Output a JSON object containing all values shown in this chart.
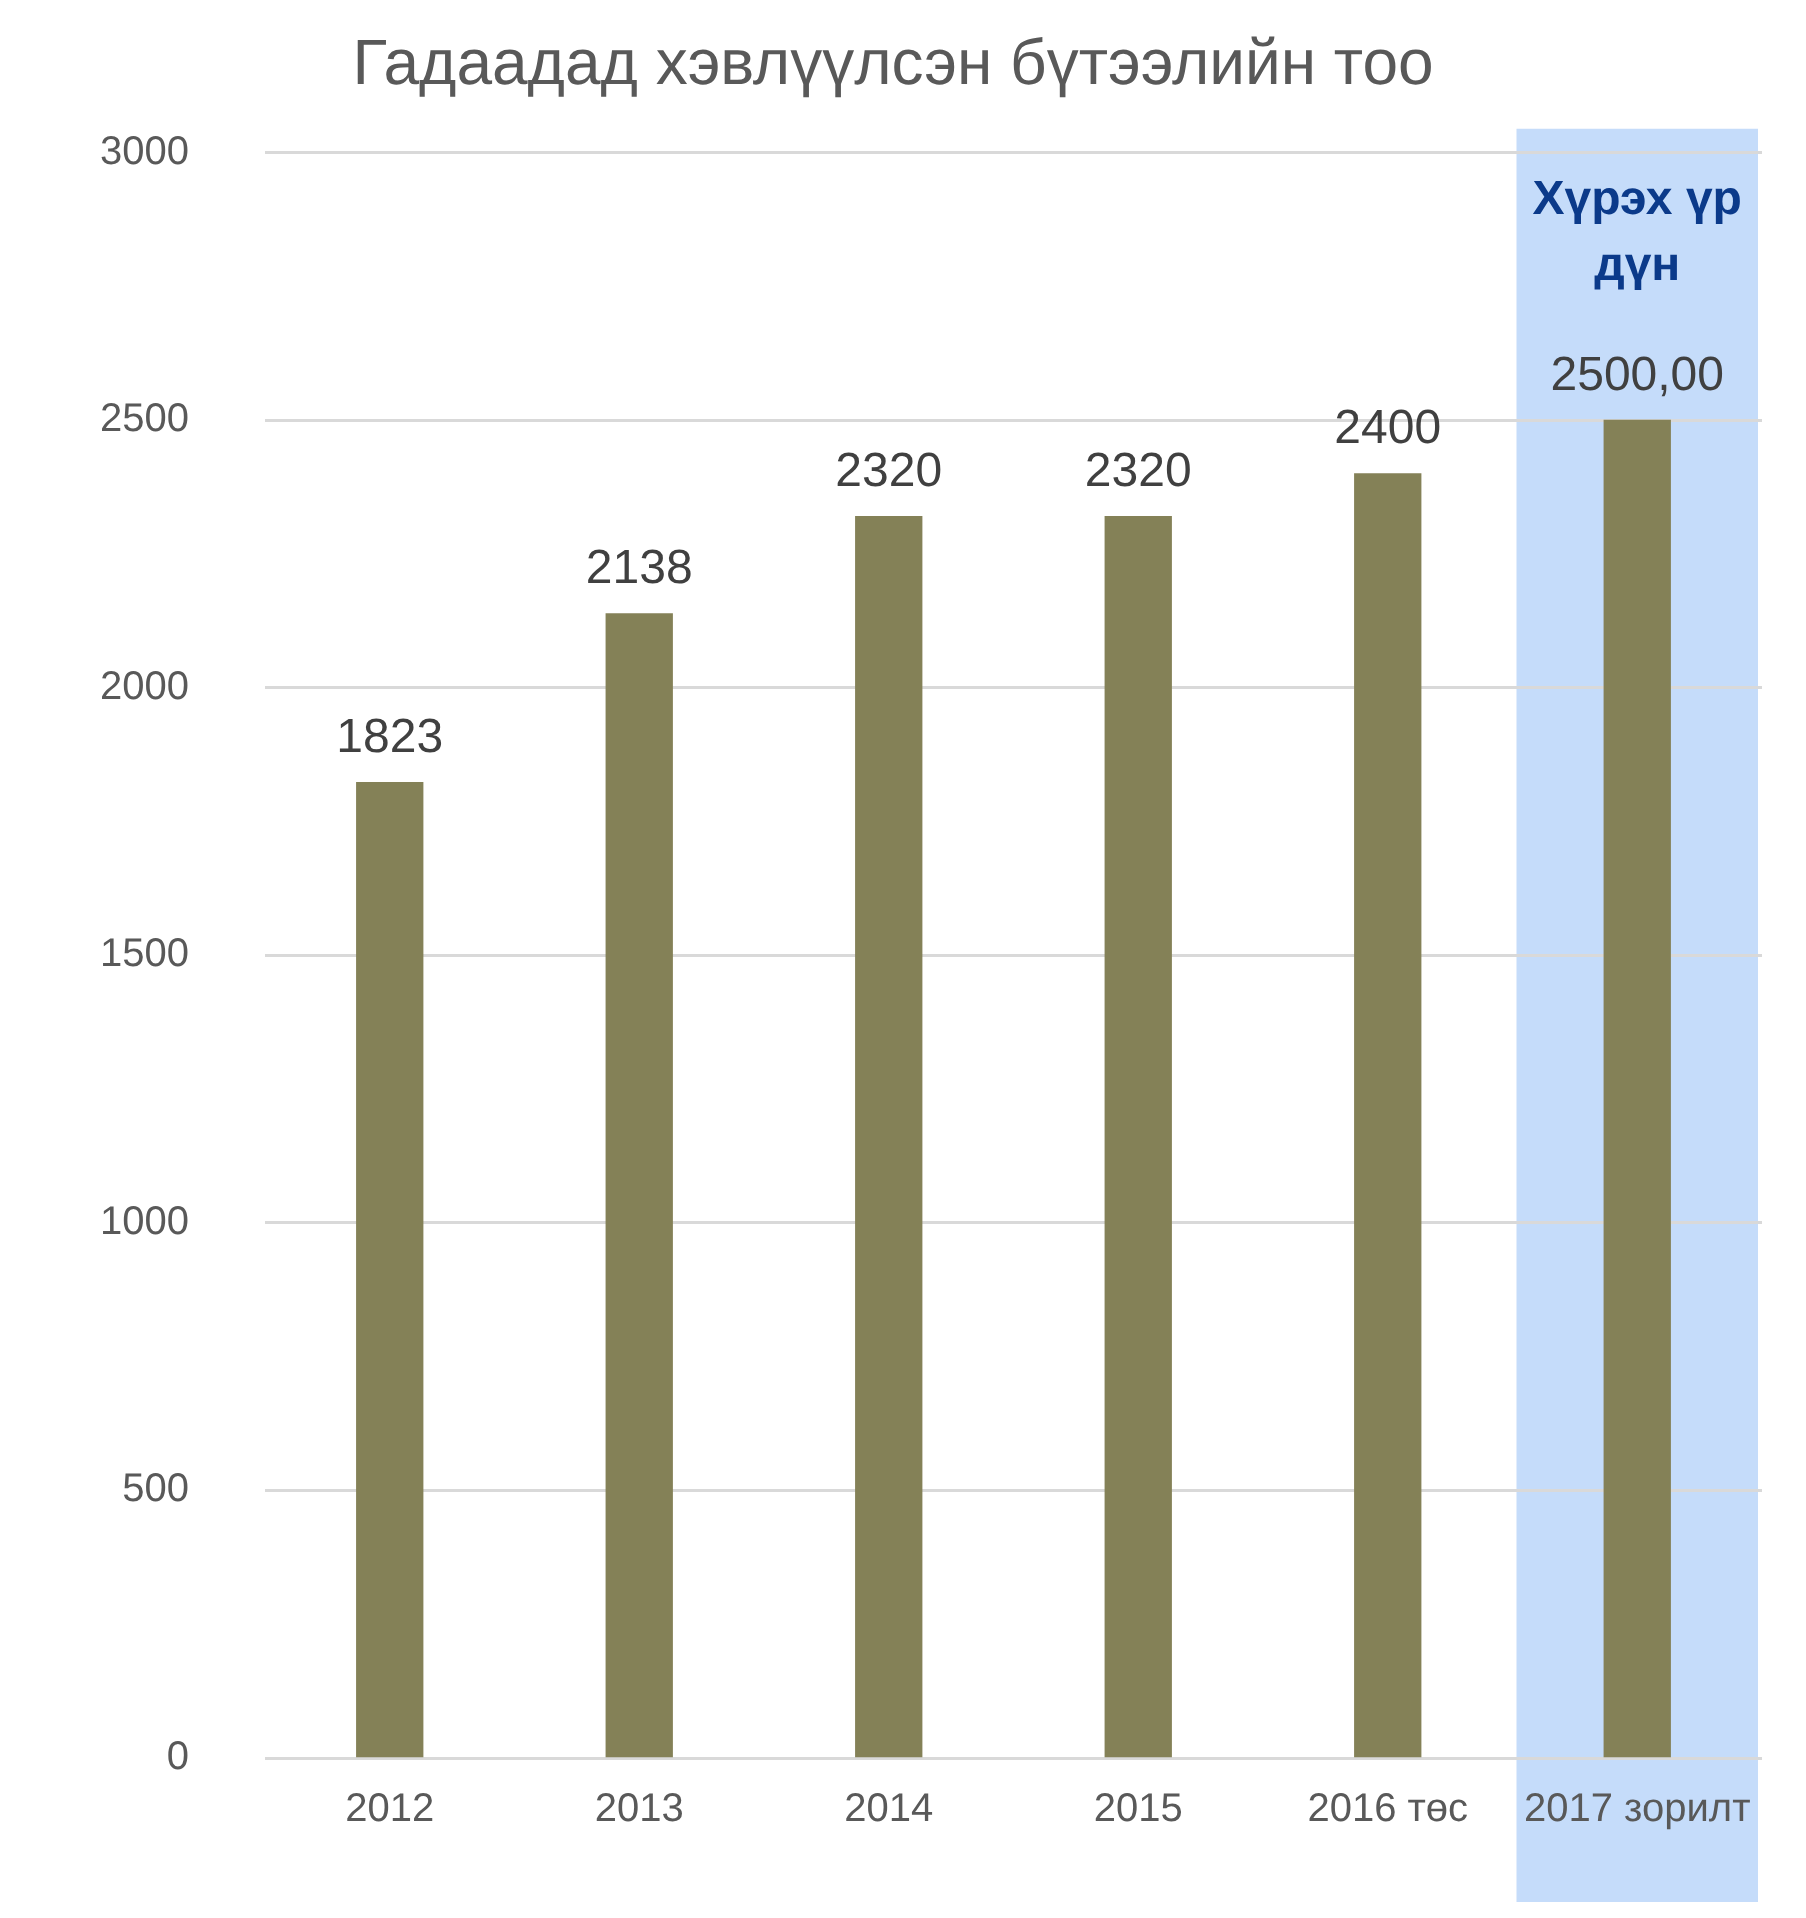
{
  "chart_data": {
    "type": "bar",
    "title": "Гадаадад хэвлүүлсэн бүтээлийн тоо",
    "categories": [
      "2012",
      "2013",
      "2014",
      "2015",
      "2016 төс",
      "2017 зорилт"
    ],
    "values": [
      1823,
      2138,
      2320,
      2320,
      2400,
      2500
    ],
    "value_labels": [
      "1823",
      "2138",
      "2320",
      "2320",
      "2400",
      "2500,00"
    ],
    "color": "#848157",
    "ylim": [
      0,
      3000
    ],
    "yticks": [
      0,
      500,
      1000,
      1500,
      2000,
      2500,
      3000
    ],
    "grid": "y",
    "legend": false,
    "bands": [
      {
        "axis": "x",
        "from": "2017 зорилт",
        "to": "2017 зорилт",
        "label": "Хүрэх үр дүн",
        "color": "#c5dcfa"
      }
    ]
  }
}
